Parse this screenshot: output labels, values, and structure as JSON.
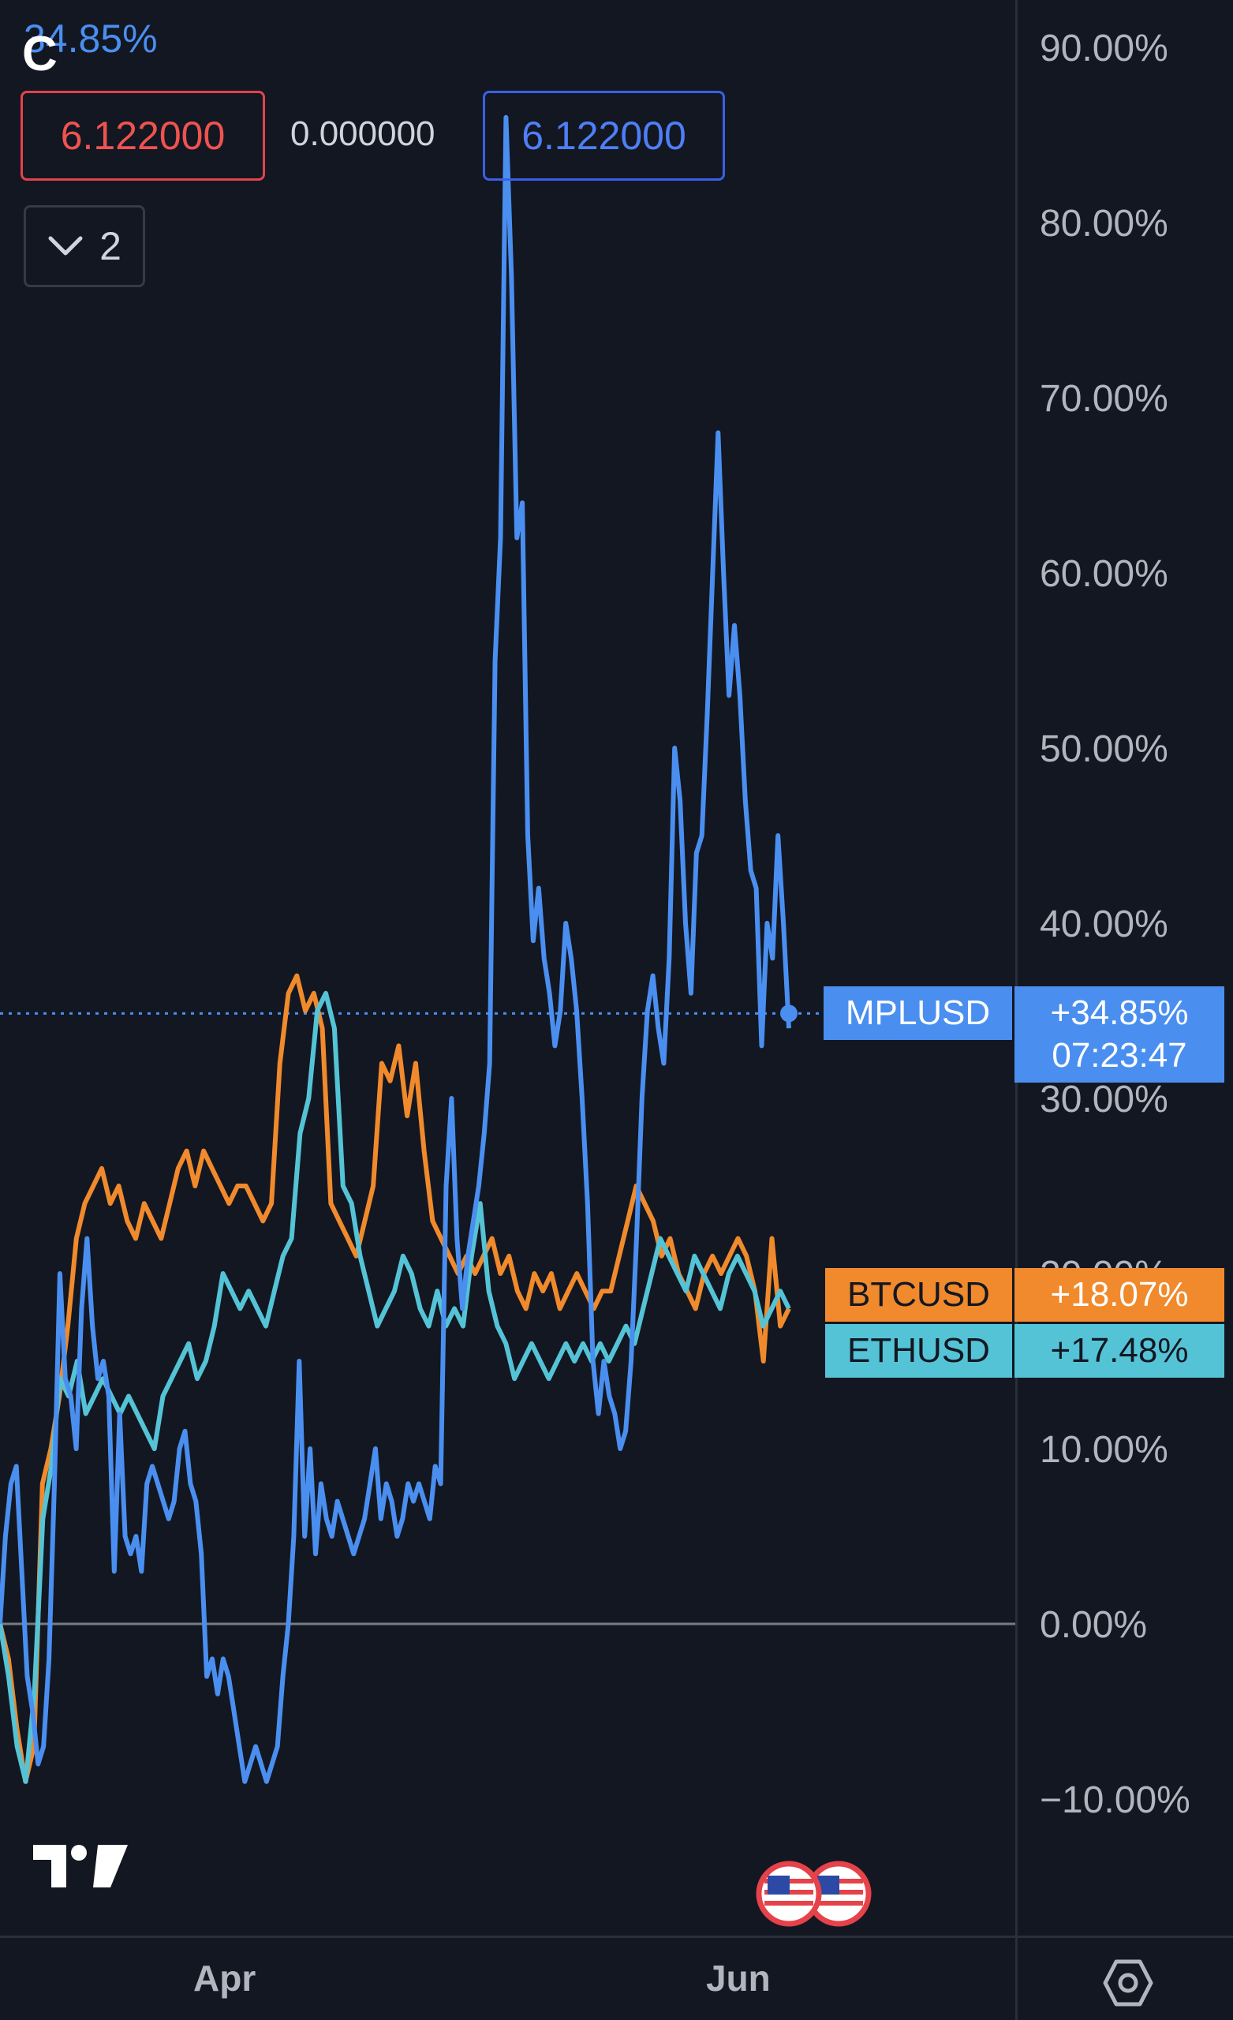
{
  "header": {
    "change_pct": "34.85%",
    "sell_price": "6.122000",
    "spread": "0.000000",
    "buy_price": "6.122000",
    "hidden_count": "2"
  },
  "icons": {
    "app_logo": "c-logo-icon",
    "collapse": "chevron-down-icon",
    "brand": "tradingview-logo-icon",
    "events": "us-flag-icon",
    "settings": "settings-hex-icon"
  },
  "colors": {
    "background": "#131722",
    "mplusd": "#4a8ff0",
    "btcusd": "#f08a2c",
    "ethusd": "#55c3d6",
    "zero_line": "#787b86",
    "axis_text": "#b2b5be"
  },
  "chart_data": {
    "type": "line",
    "y_unit": "%",
    "ylim": [
      -18,
      95
    ],
    "y_ticks": [
      "90.00%",
      "80.00%",
      "70.00%",
      "60.00%",
      "50.00%",
      "40.00%",
      "30.00%",
      "20.00%",
      "10.00%",
      "0.00%",
      "−10.00%"
    ],
    "y_tick_values": [
      90,
      80,
      70,
      60,
      50,
      40,
      30,
      20,
      10,
      0,
      -10
    ],
    "x_ticks": [
      "Apr",
      "Jun"
    ],
    "zero_line": 0,
    "current_time": "07:23:47",
    "series": [
      {
        "name": "MPLUSD",
        "last_label": "+34.85%",
        "last_value": 34.85,
        "values": [
          0,
          5,
          8,
          9,
          3,
          -3,
          -5,
          -8,
          -7,
          -2,
          8,
          20,
          14,
          13,
          10,
          18,
          22,
          17,
          14,
          15,
          13,
          3,
          12,
          5,
          4,
          5,
          3,
          8,
          9,
          8,
          7,
          6,
          7,
          10,
          11,
          8,
          7,
          4,
          -3,
          -2,
          -4,
          -2,
          -3,
          -5,
          -7,
          -9,
          -8,
          -7,
          -8,
          -9,
          -8,
          -7,
          -3,
          0,
          5,
          15,
          5,
          10,
          4,
          8,
          6,
          5,
          7,
          6,
          5,
          4,
          5,
          6,
          8,
          10,
          6,
          8,
          7,
          5,
          6,
          8,
          7,
          8,
          7,
          6,
          9,
          8,
          25,
          30,
          22,
          18,
          21,
          23,
          25,
          28,
          32,
          55,
          62,
          86,
          77,
          62,
          64,
          45,
          39,
          42,
          38,
          36,
          33,
          35,
          40,
          38,
          35,
          30,
          24,
          15,
          12,
          15,
          13,
          12,
          10,
          11,
          15,
          22,
          30,
          35,
          37,
          34,
          32,
          38,
          50,
          47,
          40,
          36,
          44,
          45,
          52,
          60,
          68,
          60,
          53,
          57,
          53,
          47,
          43,
          42,
          33,
          40,
          38,
          45,
          40,
          34
        ]
      },
      {
        "name": "BTCUSD",
        "last_label": "+18.07%",
        "last_value": 18.07,
        "values": [
          0,
          -2,
          -6,
          -9,
          -7,
          8,
          10,
          13,
          17,
          22,
          24,
          25,
          26,
          24,
          25,
          23,
          22,
          24,
          23,
          22,
          24,
          26,
          27,
          25,
          27,
          26,
          25,
          24,
          25,
          25,
          24,
          23,
          24,
          32,
          36,
          37,
          35,
          36,
          34,
          24,
          23,
          22,
          21,
          23,
          25,
          32,
          31,
          33,
          29,
          32,
          27,
          23,
          22,
          21,
          20,
          21,
          20,
          21,
          22,
          20,
          21,
          19,
          18,
          20,
          19,
          20,
          18,
          19,
          20,
          19,
          18,
          19,
          19,
          21,
          23,
          25,
          24,
          23,
          21,
          22,
          20,
          19,
          18,
          20,
          21,
          20,
          21,
          22,
          21,
          19,
          15,
          22,
          17,
          18
        ]
      },
      {
        "name": "ETHUSD",
        "last_label": "+17.48%",
        "last_value": 17.48,
        "values": [
          0,
          -3,
          -7,
          -9,
          -4,
          6,
          9,
          14,
          13,
          15,
          12,
          13,
          14,
          13,
          12,
          13,
          12,
          11,
          10,
          13,
          14,
          15,
          16,
          14,
          15,
          17,
          20,
          19,
          18,
          19,
          18,
          17,
          19,
          21,
          22,
          28,
          30,
          35,
          36,
          34,
          25,
          24,
          21,
          19,
          17,
          18,
          19,
          21,
          20,
          18,
          17,
          19,
          17,
          18,
          17,
          21,
          24,
          19,
          17,
          16,
          14,
          15,
          16,
          15,
          14,
          15,
          16,
          15,
          16,
          15,
          16,
          15,
          16,
          17,
          16,
          18,
          20,
          22,
          21,
          20,
          19,
          21,
          20,
          19,
          18,
          20,
          21,
          20,
          19,
          17,
          18,
          19,
          18
        ]
      }
    ]
  }
}
